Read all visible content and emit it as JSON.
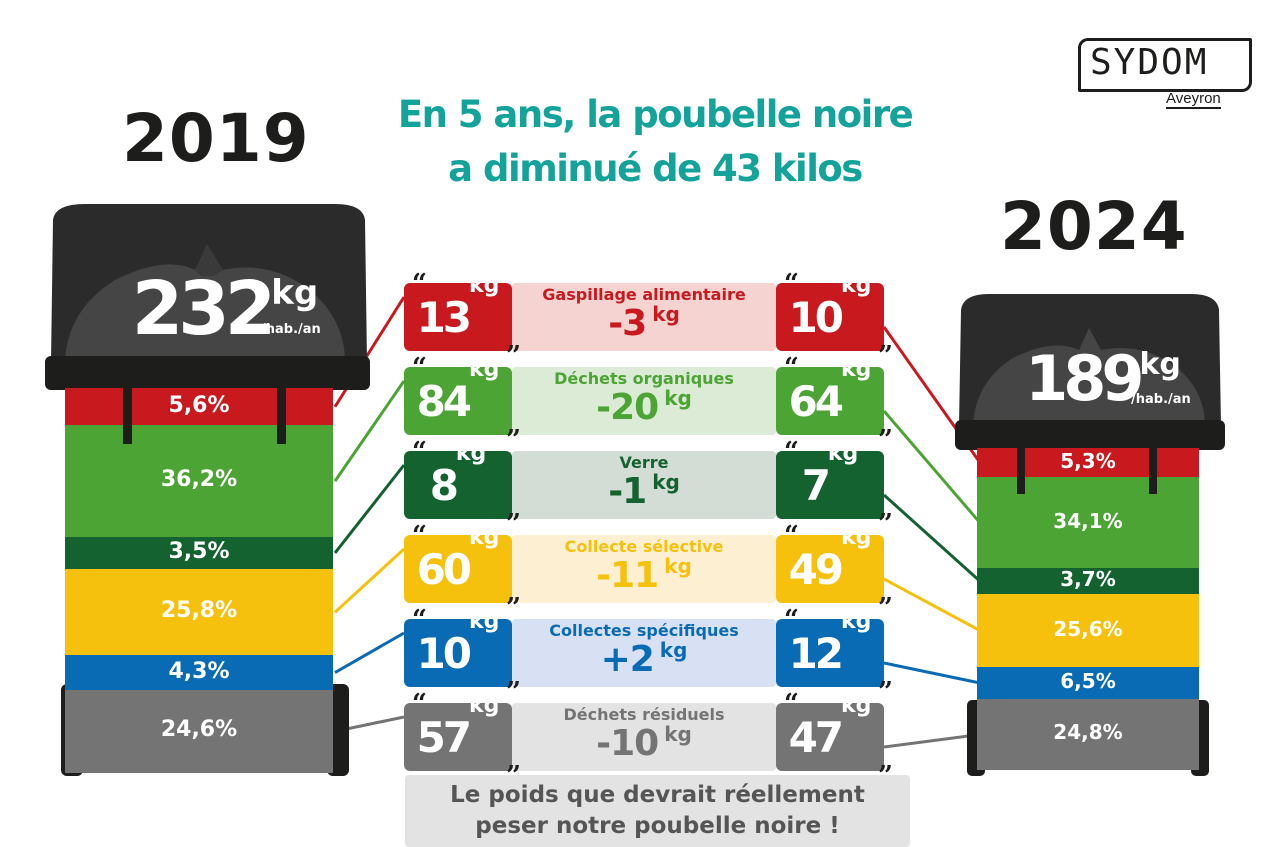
{
  "headline": {
    "line1": "En 5 ans, la poubelle noire",
    "line2": "a diminué de 43 kilos"
  },
  "logo": {
    "name": "SYDOM",
    "region": "Aveyron"
  },
  "bins": [
    {
      "year": "2019",
      "total_value": "232",
      "total_unit": "kg",
      "total_per": "/hab./an",
      "segments": [
        {
          "label": "5,6%",
          "share": 5.6,
          "color": "#c8191f"
        },
        {
          "label": "36,2%",
          "share": 36.2,
          "color": "#4ca434"
        },
        {
          "label": "3,5%",
          "share": 3.5,
          "color": "#13622f"
        },
        {
          "label": "25,8%",
          "share": 25.8,
          "color": "#f6c10d"
        },
        {
          "label": "4,3%",
          "share": 4.3,
          "color": "#0a6bb5"
        },
        {
          "label": "24,6%",
          "share": 24.6,
          "color": "#747474"
        }
      ]
    },
    {
      "year": "2024",
      "total_value": "189",
      "total_unit": "kg",
      "total_per": "/hab./an",
      "segments": [
        {
          "label": "5,3%",
          "share": 5.3,
          "color": "#c8191f"
        },
        {
          "label": "34,1%",
          "share": 34.1,
          "color": "#4ca434"
        },
        {
          "label": "3,7%",
          "share": 3.7,
          "color": "#13622f"
        },
        {
          "label": "25,6%",
          "share": 25.6,
          "color": "#f6c10d"
        },
        {
          "label": "6,5%",
          "share": 6.5,
          "color": "#0a6bb5"
        },
        {
          "label": "24,8%",
          "share": 24.8,
          "color": "#747474"
        }
      ]
    }
  ],
  "categories": [
    {
      "name": "Gaspillage alimentaire",
      "v2019": "13",
      "v2024": "10",
      "diff": "-3",
      "unit": "kg",
      "color": "#c8191f",
      "light": "#f4d3d0"
    },
    {
      "name": "Déchets organiques",
      "v2019": "84",
      "v2024": "64",
      "diff": "-20",
      "unit": "kg",
      "color": "#4ca434",
      "light": "#dcebd5"
    },
    {
      "name": "Verre",
      "v2019": "8",
      "v2024": "7",
      "diff": "-1",
      "unit": "kg",
      "color": "#13622f",
      "light": "#d3ddd6"
    },
    {
      "name": "Collecte sélective",
      "v2019": "60",
      "v2024": "49",
      "diff": "-11",
      "unit": "kg",
      "color": "#f6c10d",
      "light": "#fdf0d2"
    },
    {
      "name": "Collectes spécifiques",
      "v2019": "10",
      "v2024": "12",
      "diff": "+2",
      "unit": "kg",
      "color": "#0a6bb5",
      "light": "#d7e1f3"
    },
    {
      "name": "Déchets résiduels",
      "v2019": "57",
      "v2024": "47",
      "diff": "-10",
      "unit": "kg",
      "color": "#747474",
      "light": "#e3e3e3"
    }
  ],
  "footer": {
    "line1": "Le poids que devrait réellement",
    "line2": "peser notre poubelle noire !"
  }
}
